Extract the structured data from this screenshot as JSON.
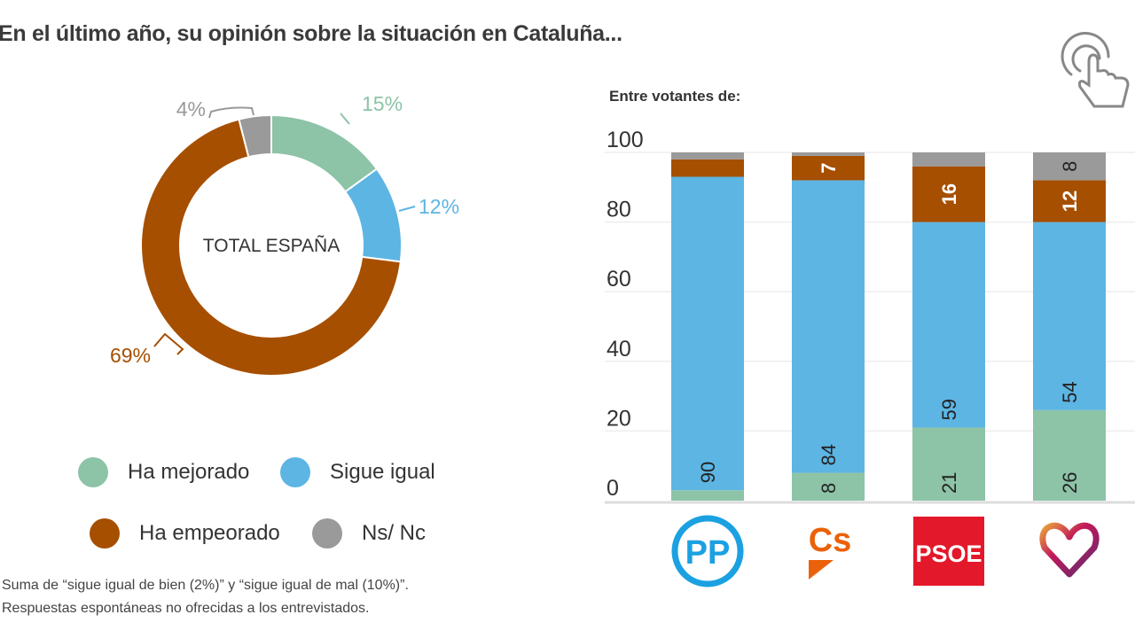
{
  "title": "En el último año, su opinión sobre la situación en Cataluña...",
  "colors": {
    "mejorado": "#8DC3A7",
    "igual": "#5DB5E3",
    "empeorado": "#A64F00",
    "nsnc": "#9A9A9A"
  },
  "legend": [
    {
      "label": "Ha mejorado",
      "key": "mejorado"
    },
    {
      "label": "Sigue igual",
      "key": "igual"
    },
    {
      "label": "Ha empeorado",
      "key": "empeorado"
    },
    {
      "label": "Ns/ Nc",
      "key": "nsnc"
    }
  ],
  "notes": [
    "Suma de “sigue igual de bien (2%)” y “sigue igual de mal (10%)”.",
    "Respuestas espontáneas no ofrecidas a los entrevistados."
  ],
  "icons": {
    "corner": "touch-hand-icon"
  },
  "chart_data": [
    {
      "type": "pie",
      "variant": "donut",
      "center_label": "TOTAL ESPAÑA",
      "slices": [
        {
          "key": "mejorado",
          "value": 15,
          "label": "15%"
        },
        {
          "key": "igual",
          "value": 12,
          "label": "12%"
        },
        {
          "key": "empeorado",
          "value": 69,
          "label": "69%"
        },
        {
          "key": "nsnc",
          "value": 4,
          "label": "4%"
        }
      ]
    },
    {
      "type": "bar",
      "stacked": true,
      "orientation": "vertical",
      "subtitle": "Entre votantes de:",
      "categories": [
        "PP",
        "Cs",
        "PSOE",
        "Podemos"
      ],
      "category_logos": [
        "pp-logo",
        "cs-logo",
        "psoe-logo",
        "podemos-heart-logo"
      ],
      "ylim": [
        0,
        100
      ],
      "yticks": [
        0,
        20,
        40,
        60,
        80,
        100
      ],
      "grid": true,
      "series": [
        {
          "key": "mejorado",
          "values": [
            3,
            8,
            21,
            26
          ],
          "labels": [
            null,
            "8",
            "21",
            "26"
          ]
        },
        {
          "key": "igual",
          "values": [
            90,
            84,
            59,
            54
          ],
          "labels": [
            "90",
            "84",
            "59",
            "54"
          ]
        },
        {
          "key": "empeorado",
          "values": [
            5,
            7,
            16,
            12
          ],
          "labels": [
            null,
            "7",
            "16",
            "12"
          ]
        },
        {
          "key": "nsnc",
          "values": [
            2,
            1,
            4,
            8
          ],
          "labels": [
            null,
            null,
            null,
            "8"
          ]
        }
      ]
    }
  ]
}
